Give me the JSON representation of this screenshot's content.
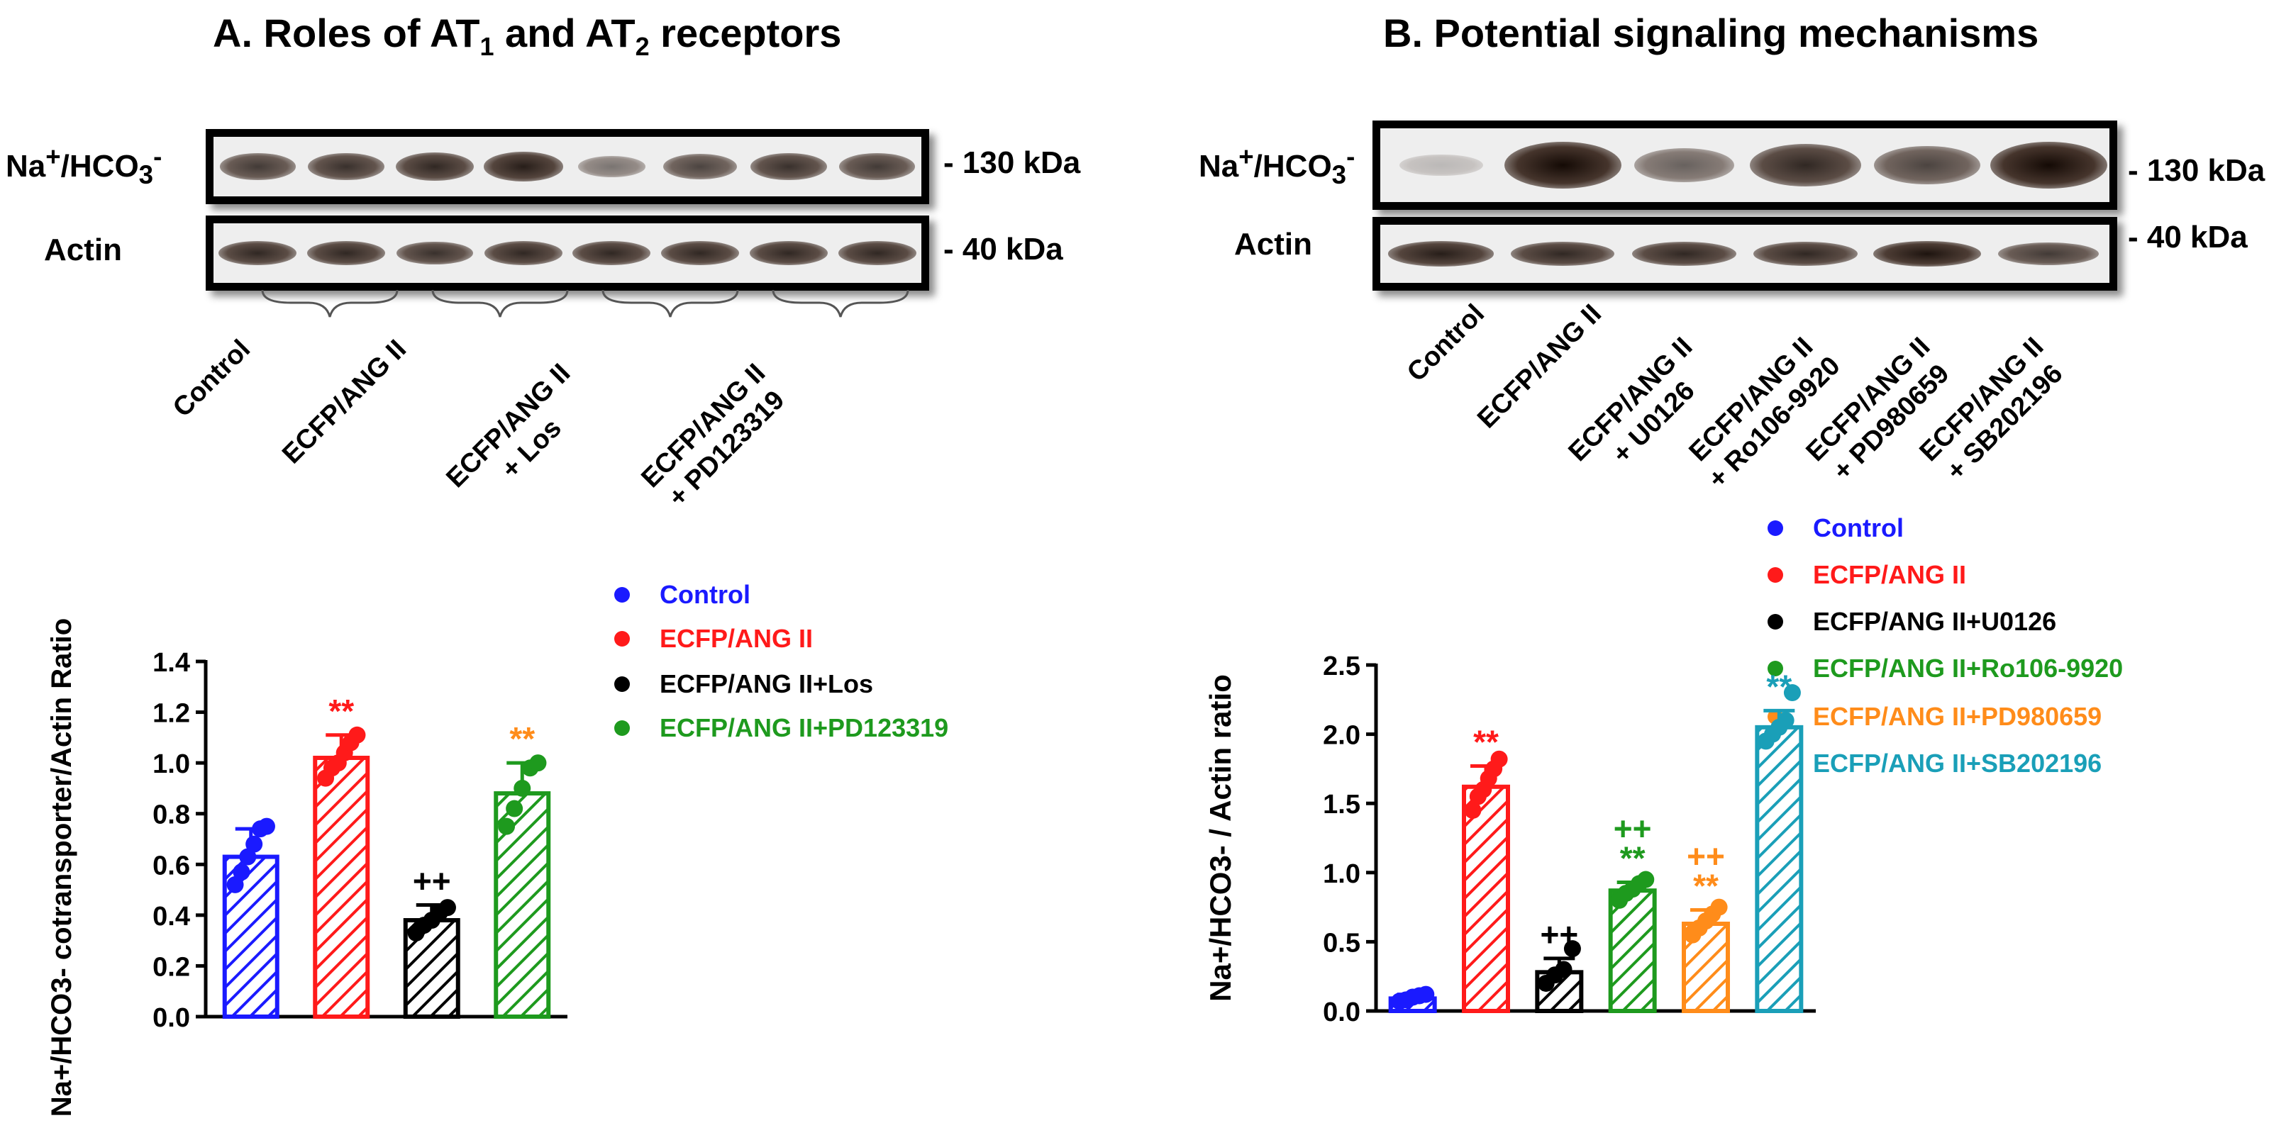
{
  "panelA": {
    "title": {
      "prefix": "A. Roles of AT",
      "sub1": "1",
      "mid": " and AT",
      "sub2": "2",
      "suffix": " receptors"
    },
    "blot_rows": [
      {
        "label_html": "Na<sup>+</sup>/HCO<sub>3</sub><sup>-</sup>",
        "kda": "- 130 kDa"
      },
      {
        "label": "Actin",
        "kda": "- 40 kDa"
      }
    ],
    "lanes": [
      {
        "line1": "Control",
        "line2": ""
      },
      {
        "line1": "ECFP/ANG II",
        "line2": ""
      },
      {
        "line1": "ECFP/ANG II",
        "line2": "+ Los"
      },
      {
        "line1": "ECFP/ANG II",
        "line2": "+ PD123319"
      }
    ],
    "band_intensity_top": [
      0.75,
      0.8,
      0.85,
      0.9,
      0.45,
      0.7,
      0.8,
      0.75
    ],
    "legend": [
      {
        "label": "Control",
        "color": "#1a1aff"
      },
      {
        "label": "ECFP/ANG II",
        "color": "#ff1a1a"
      },
      {
        "label": "ECFP/ANG II+Los",
        "color": "#000000"
      },
      {
        "label": "ECFP/ANG II+PD123319",
        "color": "#1e9a1e"
      }
    ]
  },
  "panelB": {
    "title": "B. Potential signaling mechanisms",
    "blot_rows": [
      {
        "label_html": "Na<sup>+</sup>/HCO<sub>3</sub><sup>-</sup>",
        "kda": "- 130 kDa"
      },
      {
        "label": "Actin",
        "kda": "- 40 kDa"
      }
    ],
    "lanes": [
      {
        "line1": "Control",
        "line2": ""
      },
      {
        "line1": "ECFP/ANG II",
        "line2": ""
      },
      {
        "line1": "ECFP/ANG II",
        "line2": "+ U0126"
      },
      {
        "line1": "ECFP/ANG II",
        "line2": "+ Ro106-9920"
      },
      {
        "line1": "ECFP/ANG II",
        "line2": "+ PD980659"
      },
      {
        "line1": "ECFP/ANG II",
        "line2": "+ SB202196"
      }
    ],
    "band_intensity_top": [
      0.1,
      1.0,
      0.55,
      0.85,
      0.7,
      1.0
    ],
    "legend": [
      {
        "label": "Control",
        "color": "#1a1aff"
      },
      {
        "label": "ECFP/ANG II",
        "color": "#ff1a1a"
      },
      {
        "label": "ECFP/ANG II+U0126",
        "color": "#000000"
      },
      {
        "label": "ECFP/ANG II+Ro106-9920",
        "color": "#1e9a1e"
      },
      {
        "label": "ECFP/ANG II+PD980659",
        "color": "#ff8c1a"
      },
      {
        "label": "ECFP/ANG II+SB202196",
        "color": "#1a9fb8"
      }
    ]
  },
  "chart_data": [
    {
      "type": "bar",
      "title": "A. Roles of AT1 and AT2 receptors",
      "categories": [
        "Control",
        "ECFP/ANG II",
        "ECFP/ANG II+Los",
        "ECFP/ANG II+PD123319"
      ],
      "values": [
        0.63,
        1.02,
        0.38,
        0.88
      ],
      "errors": [
        0.11,
        0.09,
        0.06,
        0.12
      ],
      "points": [
        [
          0.52,
          0.57,
          0.63,
          0.68,
          0.74,
          0.75
        ],
        [
          0.94,
          0.98,
          1.0,
          1.04,
          1.08,
          1.11
        ],
        [
          0.33,
          0.36,
          0.38,
          0.41,
          0.43
        ],
        [
          0.75,
          0.82,
          0.9,
          0.98,
          1.0
        ]
      ],
      "colors": [
        "#1a1aff",
        "#ff1a1a",
        "#000000",
        "#1e9a1e"
      ],
      "annotations": [
        {
          "index": 1,
          "text": "**",
          "color": "#ff1a1a"
        },
        {
          "index": 2,
          "text": "++",
          "color": "#000000"
        },
        {
          "index": 3,
          "text": "**",
          "color": "#ff8c1a"
        }
      ],
      "ylabel": "Na+/HCO3- cotransporter/Actin Ratio",
      "ylim": [
        0,
        1.4
      ],
      "yticks": [
        "0.0",
        "0.2",
        "0.4",
        "0.6",
        "0.8",
        "1.0",
        "1.2",
        "1.4"
      ]
    },
    {
      "type": "bar",
      "title": "B. Potential signaling mechanisms",
      "categories": [
        "Control",
        "ECFP/ANG II",
        "ECFP/ANG II+U0126",
        "ECFP/ANG II+Ro106-9920",
        "ECFP/ANG II+PD980659",
        "ECFP/ANG II+SB202196"
      ],
      "values": [
        0.09,
        1.62,
        0.28,
        0.87,
        0.63,
        2.05
      ],
      "errors": [
        0.03,
        0.15,
        0.1,
        0.06,
        0.1,
        0.12
      ],
      "points": [
        [
          0.07,
          0.08,
          0.1,
          0.11,
          0.12
        ],
        [
          1.45,
          1.55,
          1.6,
          1.68,
          1.75,
          1.82
        ],
        [
          0.2,
          0.26,
          0.3,
          0.45
        ],
        [
          0.8,
          0.85,
          0.88,
          0.92,
          0.95
        ],
        [
          0.55,
          0.6,
          0.65,
          0.7,
          0.75
        ],
        [
          1.95,
          2.0,
          2.05,
          2.1,
          2.3
        ]
      ],
      "colors": [
        "#1a1aff",
        "#ff1a1a",
        "#000000",
        "#1e9a1e",
        "#ff8c1a",
        "#1a9fb8"
      ],
      "annotations": [
        {
          "index": 1,
          "text": "**",
          "color": "#ff1a1a"
        },
        {
          "index": 2,
          "text": "++",
          "color": "#000000"
        },
        {
          "index": 3,
          "text": "++",
          "color": "#1e9a1e"
        },
        {
          "index": 3,
          "text": "**",
          "color": "#1e9a1e"
        },
        {
          "index": 4,
          "text": "++",
          "color": "#ff8c1a"
        },
        {
          "index": 4,
          "text": "**",
          "color": "#ff8c1a"
        },
        {
          "index": 5,
          "text": "**",
          "color": "#1a9fb8"
        }
      ],
      "ylabel": "Na+/HCO3- / Actin ratio",
      "ylim": [
        0,
        2.5
      ],
      "yticks": [
        "0.0",
        "0.5",
        "1.0",
        "1.5",
        "2.0",
        "2.5"
      ]
    }
  ]
}
